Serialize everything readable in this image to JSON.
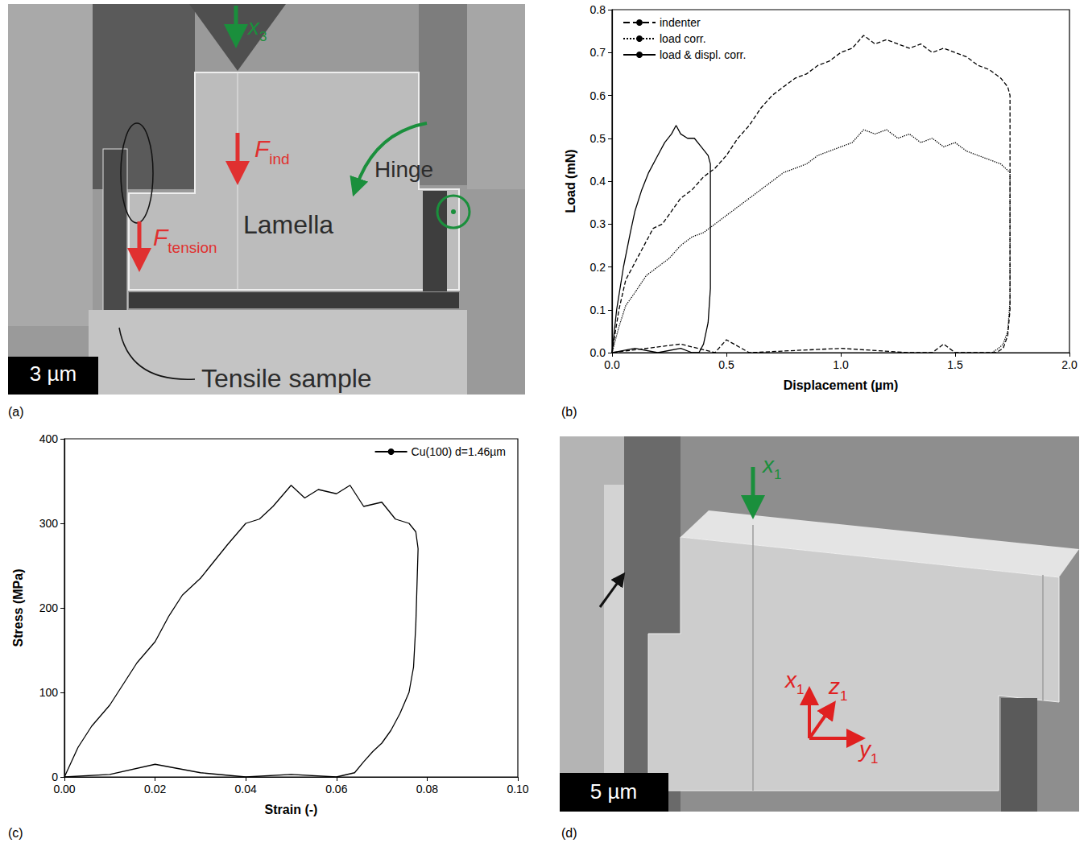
{
  "images": [
    {
      "panel_label": "(a)",
      "kind": "micrograph",
      "indenter_axis": {
        "text": "x",
        "sub": "3"
      },
      "indenter_force": {
        "text": "F",
        "sub": "ind"
      },
      "tension_force": {
        "text": "F",
        "sub": "tension"
      },
      "lamella": "Lamella",
      "hinge": "Hinge",
      "sample": "Tensile sample",
      "scale_bar": "3 µm"
    },
    {
      "panel_label": "(d)",
      "kind": "micrograph",
      "indenter_axis": {
        "text": "x",
        "sub": "1"
      },
      "axes": [
        {
          "text": "x",
          "sub": "1"
        },
        {
          "text": "z",
          "sub": "1"
        },
        {
          "text": "y",
          "sub": "1"
        }
      ],
      "scale_bar": "5 µm"
    }
  ],
  "chart_data": [
    {
      "type": "line",
      "panel_label": "(b)",
      "xlabel": "Displacement (µm)",
      "ylabel": "Load (mN)",
      "xlim": [
        0,
        2
      ],
      "ylim": [
        0,
        0.8
      ],
      "xticks": [
        {
          "value": 0,
          "label": "0.0"
        },
        {
          "value": 0.5,
          "label": "0.5"
        },
        {
          "value": 1,
          "label": "1.0"
        },
        {
          "value": 1.5,
          "label": "1.5"
        },
        {
          "value": 2,
          "label": "2.0"
        }
      ],
      "yticks": [
        {
          "value": 0,
          "label": "0.0"
        },
        0.1,
        0.2,
        0.3,
        0.4,
        0.5,
        0.6,
        0.7,
        0.8
      ],
      "grid": false,
      "legend": "top-left",
      "series": [
        {
          "name": "indenter",
          "color": "#000000",
          "line_style": "dashed",
          "x": [
            0,
            0.03,
            0.06,
            0.1,
            0.14,
            0.18,
            0.22,
            0.26,
            0.3,
            0.35,
            0.4,
            0.45,
            0.5,
            0.55,
            0.6,
            0.65,
            0.7,
            0.75,
            0.8,
            0.85,
            0.9,
            0.95,
            1.0,
            1.05,
            1.1,
            1.15,
            1.2,
            1.25,
            1.3,
            1.35,
            1.4,
            1.45,
            1.5,
            1.55,
            1.6,
            1.65,
            1.7,
            1.73,
            1.74,
            1.74,
            1.73,
            1.71,
            1.68,
            1.6,
            1.5,
            1.45,
            1.4,
            1.3,
            1.0,
            0.6,
            0.5,
            0.45,
            0.3,
            0.0
          ],
          "values": [
            0,
            0.1,
            0.17,
            0.21,
            0.25,
            0.29,
            0.3,
            0.33,
            0.36,
            0.38,
            0.41,
            0.43,
            0.46,
            0.5,
            0.53,
            0.57,
            0.6,
            0.62,
            0.64,
            0.65,
            0.67,
            0.68,
            0.7,
            0.71,
            0.74,
            0.72,
            0.73,
            0.72,
            0.71,
            0.72,
            0.7,
            0.71,
            0.7,
            0.69,
            0.67,
            0.66,
            0.64,
            0.62,
            0.6,
            0.1,
            0.04,
            0.01,
            0,
            0,
            0,
            0.02,
            0,
            0,
            0.01,
            0,
            0.03,
            0,
            0.02,
            0
          ]
        },
        {
          "name": "load corr.",
          "color": "#000000",
          "line_style": "dotted",
          "x": [
            0,
            0.03,
            0.06,
            0.1,
            0.15,
            0.2,
            0.25,
            0.3,
            0.35,
            0.4,
            0.45,
            0.5,
            0.55,
            0.6,
            0.65,
            0.7,
            0.75,
            0.8,
            0.85,
            0.9,
            0.95,
            1.0,
            1.05,
            1.1,
            1.15,
            1.2,
            1.25,
            1.3,
            1.35,
            1.4,
            1.45,
            1.5,
            1.55,
            1.6,
            1.65,
            1.7,
            1.74,
            1.74,
            1.73,
            1.71,
            1.69,
            1.66
          ],
          "values": [
            0,
            0.06,
            0.11,
            0.14,
            0.18,
            0.2,
            0.22,
            0.25,
            0.27,
            0.28,
            0.3,
            0.32,
            0.34,
            0.36,
            0.38,
            0.4,
            0.42,
            0.43,
            0.44,
            0.46,
            0.47,
            0.48,
            0.49,
            0.52,
            0.51,
            0.52,
            0.5,
            0.51,
            0.49,
            0.5,
            0.48,
            0.49,
            0.47,
            0.46,
            0.45,
            0.44,
            0.42,
            0.12,
            0.05,
            0.02,
            0.01,
            0
          ]
        },
        {
          "name": "load & displ. corr.",
          "color": "#000000",
          "line_style": "solid",
          "x": [
            0,
            0.02,
            0.05,
            0.08,
            0.1,
            0.13,
            0.16,
            0.2,
            0.23,
            0.26,
            0.28,
            0.3,
            0.33,
            0.36,
            0.39,
            0.42,
            0.43,
            0.43,
            0.42,
            0.4,
            0.38,
            0.35,
            0.3,
            0.2,
            0.1,
            0
          ],
          "values": [
            0,
            0.1,
            0.2,
            0.28,
            0.33,
            0.38,
            0.42,
            0.46,
            0.49,
            0.51,
            0.53,
            0.51,
            0.5,
            0.5,
            0.48,
            0.46,
            0.44,
            0.15,
            0.07,
            0.02,
            0,
            0,
            0.01,
            0,
            0.01,
            0
          ]
        }
      ]
    },
    {
      "type": "line",
      "panel_label": "(c)",
      "xlabel": "Strain (-)",
      "ylabel": "Stress (MPa)",
      "xlim": [
        0,
        0.1
      ],
      "ylim": [
        0,
        400
      ],
      "xticks": [
        {
          "value": 0,
          "label": "0.00"
        },
        {
          "value": 0.02,
          "label": "0.02"
        },
        {
          "value": 0.04,
          "label": "0.04"
        },
        {
          "value": 0.06,
          "label": "0.06"
        },
        {
          "value": 0.08,
          "label": "0.08"
        },
        {
          "value": 0.1,
          "label": "0.10"
        }
      ],
      "yticks": [
        0,
        100,
        200,
        300,
        400
      ],
      "grid": false,
      "legend": "top-right",
      "series": [
        {
          "name": "Cu(100) d=1.46µm",
          "color": "#000000",
          "line_style": "solid",
          "x": [
            0,
            0.003,
            0.006,
            0.01,
            0.013,
            0.016,
            0.02,
            0.023,
            0.026,
            0.03,
            0.033,
            0.036,
            0.04,
            0.043,
            0.046,
            0.05,
            0.053,
            0.056,
            0.06,
            0.063,
            0.066,
            0.07,
            0.073,
            0.076,
            0.0775,
            0.078,
            0.0775,
            0.077,
            0.076,
            0.074,
            0.072,
            0.07,
            0.068,
            0.066,
            0.064,
            0.06,
            0.05,
            0.04,
            0.03,
            0.02,
            0.01,
            0
          ],
          "values": [
            0,
            35,
            60,
            85,
            110,
            135,
            160,
            190,
            215,
            235,
            255,
            275,
            300,
            305,
            320,
            345,
            330,
            340,
            335,
            345,
            320,
            325,
            305,
            300,
            290,
            270,
            180,
            130,
            100,
            75,
            55,
            40,
            30,
            18,
            5,
            0,
            3,
            0,
            5,
            15,
            3,
            0
          ]
        }
      ]
    }
  ]
}
